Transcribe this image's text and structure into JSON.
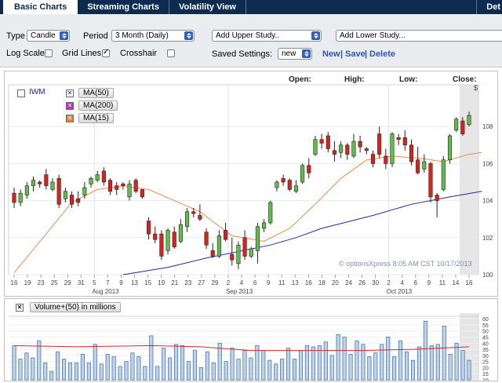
{
  "tabs": [
    {
      "label": "Basic Charts",
      "active": true
    },
    {
      "label": "Streaming Charts",
      "active": false
    },
    {
      "label": "Volatility View",
      "active": false
    },
    {
      "label": "Det",
      "active": false
    }
  ],
  "toolbar": {
    "type_label": "Type",
    "type_value": "Candle",
    "period_label": "Period",
    "period_value": "3 Month (Daily)",
    "upper_study": "Add Upper Study..",
    "lower_study": "Add Lower Study...",
    "log_scale_label": "Log Scale",
    "log_scale_checked": false,
    "grid_lines_label": "Grid Lines",
    "grid_lines_checked": true,
    "crosshair_label": "Crosshair",
    "crosshair_checked": false,
    "saved_settings_label": "Saved Settings:",
    "saved_settings_value": "new",
    "new_link": "New",
    "save_link": "Save",
    "delete_link": "Delete",
    "link_separator": "|"
  },
  "price_header": {
    "open_label": "Open:",
    "high_label": "High:",
    "low_label": "Low:",
    "close_label": "Close:",
    "currency_label": "$"
  },
  "legend": {
    "symbol": "IWM",
    "studies": [
      {
        "label": "MA(50)",
        "color": "#1a1aa6"
      },
      {
        "label": "MA(200)",
        "color": "#c02ac9"
      },
      {
        "label": "MA(15)",
        "color": "#f07a3a"
      }
    ]
  },
  "watermark": "© optionsXpress 8:05 AM CST 10/17/2013",
  "colors": {
    "up": "#5fbf4a",
    "down": "#d9241c",
    "ma50": "#27279c",
    "ma15": "#f08a4b",
    "volume_bar": "#bcd3ea",
    "volume_ma": "#d7262b",
    "tabbar": "#0d2a4f"
  },
  "chart_data": [
    {
      "type": "candlestick",
      "symbol": "IWM",
      "period": "3 Month (Daily)",
      "y_axis": {
        "ticks": [
          100,
          102,
          104,
          106,
          108
        ],
        "ylim": [
          100,
          110
        ],
        "unit": "$"
      },
      "x_ticks": [
        "16",
        "19",
        "23",
        "25",
        "29",
        "31",
        "5",
        "7",
        "9",
        "13",
        "15",
        "19",
        "21",
        "23",
        "27",
        "29",
        "2",
        "4",
        "6",
        "9",
        "11",
        "13",
        "16",
        "18",
        "20",
        "24",
        "26",
        "30",
        "2",
        "4",
        "6",
        "9",
        "11",
        "14",
        "16"
      ],
      "month_labels": [
        "Aug 2013",
        "Sep 2013",
        "Oct 2013"
      ],
      "candles": [
        {
          "o": 104.4,
          "h": 104.7,
          "l": 103.6,
          "c": 103.9
        },
        {
          "o": 103.9,
          "h": 104.6,
          "l": 103.7,
          "c": 104.4
        },
        {
          "o": 104.3,
          "h": 105.0,
          "l": 104.1,
          "c": 104.8
        },
        {
          "o": 104.8,
          "h": 105.3,
          "l": 104.5,
          "c": 105.1
        },
        {
          "o": 105.0,
          "h": 105.1,
          "l": 104.7,
          "c": 104.9
        },
        {
          "o": 105.4,
          "h": 105.7,
          "l": 104.6,
          "c": 104.8
        },
        {
          "o": 104.6,
          "h": 105.2,
          "l": 104.5,
          "c": 105.0
        },
        {
          "o": 105.2,
          "h": 105.4,
          "l": 103.6,
          "c": 103.8
        },
        {
          "o": 104.1,
          "h": 104.7,
          "l": 103.9,
          "c": 104.5
        },
        {
          "o": 104.3,
          "h": 104.5,
          "l": 103.6,
          "c": 103.8
        },
        {
          "o": 104.1,
          "h": 104.5,
          "l": 103.7,
          "c": 103.9
        },
        {
          "o": 104.3,
          "h": 105.0,
          "l": 104.1,
          "c": 104.7
        },
        {
          "o": 104.9,
          "h": 105.3,
          "l": 104.7,
          "c": 105.2
        },
        {
          "o": 105.1,
          "h": 105.6,
          "l": 105.0,
          "c": 105.4
        },
        {
          "o": 105.6,
          "h": 105.8,
          "l": 104.8,
          "c": 105.0
        },
        {
          "o": 105.1,
          "h": 105.2,
          "l": 104.3,
          "c": 104.5
        },
        {
          "o": 104.8,
          "h": 105.0,
          "l": 104.3,
          "c": 104.6
        },
        {
          "o": 104.9,
          "h": 105.0,
          "l": 104.6,
          "c": 104.8
        },
        {
          "o": 104.2,
          "h": 105.1,
          "l": 104.0,
          "c": 104.9
        },
        {
          "o": 105.1,
          "h": 105.2,
          "l": 104.4,
          "c": 104.5
        },
        {
          "o": 104.6,
          "h": 104.6,
          "l": 104.1,
          "c": 104.2
        },
        {
          "o": 102.9,
          "h": 103.1,
          "l": 101.9,
          "c": 102.2
        },
        {
          "o": 102.2,
          "h": 102.6,
          "l": 101.7,
          "c": 101.9
        },
        {
          "o": 102.2,
          "h": 102.4,
          "l": 100.8,
          "c": 101.0
        },
        {
          "o": 101.3,
          "h": 102.5,
          "l": 101.1,
          "c": 102.4
        },
        {
          "o": 102.3,
          "h": 102.6,
          "l": 101.4,
          "c": 101.5
        },
        {
          "o": 101.8,
          "h": 103.0,
          "l": 101.7,
          "c": 102.7
        },
        {
          "o": 102.6,
          "h": 103.6,
          "l": 102.3,
          "c": 103.4
        },
        {
          "o": 103.4,
          "h": 103.6,
          "l": 103.1,
          "c": 103.3
        },
        {
          "o": 103.2,
          "h": 103.8,
          "l": 102.9,
          "c": 103.0
        },
        {
          "o": 102.3,
          "h": 102.5,
          "l": 101.4,
          "c": 101.6
        },
        {
          "o": 101.3,
          "h": 101.7,
          "l": 100.9,
          "c": 101.0
        },
        {
          "o": 101.0,
          "h": 102.4,
          "l": 100.9,
          "c": 102.1
        },
        {
          "o": 102.4,
          "h": 102.8,
          "l": 101.8,
          "c": 101.9
        },
        {
          "o": 101.1,
          "h": 102.0,
          "l": 100.5,
          "c": 100.8
        },
        {
          "o": 100.6,
          "h": 101.8,
          "l": 100.3,
          "c": 101.6
        },
        {
          "o": 102.0,
          "h": 102.4,
          "l": 100.8,
          "c": 101.0
        },
        {
          "o": 101.0,
          "h": 101.5,
          "l": 100.9,
          "c": 101.4
        },
        {
          "o": 101.3,
          "h": 102.8,
          "l": 100.6,
          "c": 102.6
        },
        {
          "o": 102.5,
          "h": 103.0,
          "l": 102.3,
          "c": 102.8
        },
        {
          "o": 102.8,
          "h": 104.0,
          "l": 102.7,
          "c": 103.9
        },
        {
          "o": 104.7,
          "h": 105.1,
          "l": 104.5,
          "c": 105.0
        },
        {
          "o": 105.2,
          "h": 105.4,
          "l": 104.8,
          "c": 105.0
        },
        {
          "o": 105.1,
          "h": 105.2,
          "l": 104.5,
          "c": 104.6
        },
        {
          "o": 104.5,
          "h": 105.1,
          "l": 104.4,
          "c": 104.8
        },
        {
          "o": 105.0,
          "h": 106.0,
          "l": 104.9,
          "c": 105.9
        },
        {
          "o": 105.9,
          "h": 106.3,
          "l": 105.2,
          "c": 105.5
        },
        {
          "o": 106.5,
          "h": 107.5,
          "l": 106.4,
          "c": 107.3
        },
        {
          "o": 107.3,
          "h": 107.6,
          "l": 106.8,
          "c": 107.1
        },
        {
          "o": 107.5,
          "h": 107.7,
          "l": 106.6,
          "c": 106.8
        },
        {
          "o": 106.7,
          "h": 107.2,
          "l": 106.1,
          "c": 106.5
        },
        {
          "o": 106.6,
          "h": 107.2,
          "l": 106.3,
          "c": 107.0
        },
        {
          "o": 107.0,
          "h": 107.1,
          "l": 106.2,
          "c": 106.5
        },
        {
          "o": 106.4,
          "h": 107.6,
          "l": 106.3,
          "c": 107.2
        },
        {
          "o": 107.2,
          "h": 107.5,
          "l": 106.6,
          "c": 106.9
        },
        {
          "o": 106.8,
          "h": 106.9,
          "l": 106.5,
          "c": 106.7
        },
        {
          "o": 106.5,
          "h": 106.7,
          "l": 105.8,
          "c": 106.0
        },
        {
          "o": 107.6,
          "h": 108.0,
          "l": 106.3,
          "c": 106.5
        },
        {
          "o": 106.4,
          "h": 106.8,
          "l": 105.7,
          "c": 106.0
        },
        {
          "o": 106.0,
          "h": 107.7,
          "l": 105.8,
          "c": 107.6
        },
        {
          "o": 107.4,
          "h": 107.6,
          "l": 107.0,
          "c": 107.3
        },
        {
          "o": 107.4,
          "h": 107.8,
          "l": 106.7,
          "c": 107.0
        },
        {
          "o": 107.0,
          "h": 107.3,
          "l": 105.9,
          "c": 106.1
        },
        {
          "o": 106.2,
          "h": 106.9,
          "l": 105.4,
          "c": 105.5
        },
        {
          "o": 105.7,
          "h": 106.5,
          "l": 105.5,
          "c": 106.1
        },
        {
          "o": 106.0,
          "h": 106.1,
          "l": 103.9,
          "c": 104.2
        },
        {
          "o": 104.3,
          "h": 104.4,
          "l": 103.1,
          "c": 104.0
        },
        {
          "o": 104.6,
          "h": 106.4,
          "l": 104.5,
          "c": 106.2
        },
        {
          "o": 106.2,
          "h": 107.6,
          "l": 106.0,
          "c": 107.5
        },
        {
          "o": 107.8,
          "h": 108.5,
          "l": 107.7,
          "c": 108.4
        },
        {
          "o": 108.3,
          "h": 108.5,
          "l": 107.5,
          "c": 107.6
        },
        {
          "o": 108.1,
          "h": 108.8,
          "l": 108.0,
          "c": 108.6
        }
      ],
      "moving_averages": [
        {
          "name": "MA(50)",
          "points": [
            [
              17,
              100.0
            ],
            [
              24,
              100.4
            ],
            [
              30,
              100.9
            ],
            [
              40,
              101.6
            ],
            [
              44,
              102.0
            ],
            [
              48,
              102.5
            ],
            [
              56,
              103.2
            ],
            [
              62,
              103.8
            ],
            [
              68,
              104.2
            ],
            [
              73,
              104.5
            ]
          ]
        },
        {
          "name": "MA(15)",
          "points": [
            [
              0,
              100.1
            ],
            [
              5,
              102.2
            ],
            [
              9,
              103.9
            ],
            [
              13,
              104.6
            ],
            [
              17,
              104.8
            ],
            [
              21,
              104.6
            ],
            [
              25,
              104.0
            ],
            [
              29,
              103.4
            ],
            [
              34,
              102.1
            ],
            [
              39,
              101.8
            ],
            [
              43,
              102.5
            ],
            [
              47,
              103.8
            ],
            [
              51,
              105.2
            ],
            [
              55,
              106.2
            ],
            [
              59,
              106.4
            ],
            [
              63,
              106.3
            ],
            [
              67,
              106.1
            ],
            [
              71,
              106.5
            ],
            [
              73,
              106.6
            ]
          ]
        }
      ]
    },
    {
      "type": "bar",
      "title": "Volume+(50) in millions",
      "y_axis": {
        "ticks": [
          60,
          55,
          50,
          45,
          40,
          35,
          30,
          25,
          20,
          15,
          10
        ],
        "ylim": [
          10,
          62
        ]
      },
      "values": [
        38,
        27,
        32,
        28,
        42,
        24,
        17,
        33,
        27,
        24,
        24,
        31,
        24,
        39,
        23,
        31,
        29,
        21,
        25,
        32,
        29,
        21,
        46,
        21,
        36,
        28,
        39,
        38,
        25,
        34,
        20,
        33,
        24,
        40,
        25,
        36,
        27,
        34,
        28,
        38,
        34,
        26,
        23,
        27,
        36,
        27,
        34,
        38,
        37,
        38,
        41,
        30,
        47,
        45,
        31,
        42,
        39,
        29,
        32,
        39,
        45,
        29,
        42,
        33,
        26,
        37,
        58,
        38,
        39,
        54,
        31,
        40,
        34,
        26
      ],
      "ma_line": [
        [
          0,
          38
        ],
        [
          10,
          37
        ],
        [
          22,
          38
        ],
        [
          30,
          37
        ],
        [
          38,
          34
        ],
        [
          46,
          34
        ],
        [
          56,
          34
        ],
        [
          64,
          35
        ],
        [
          73,
          37
        ]
      ]
    }
  ]
}
